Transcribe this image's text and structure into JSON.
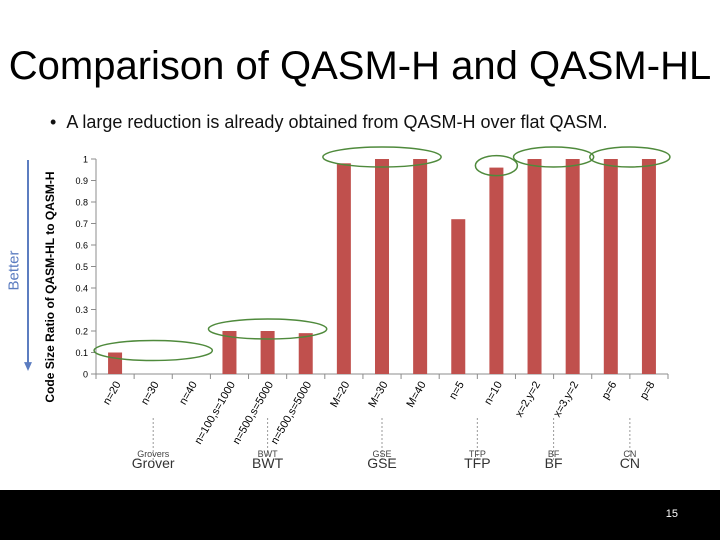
{
  "slide": {
    "title": "Comparison of QASM-H and QASM-HL",
    "bullet": "A large reduction is already obtained from QASM-H over flat QASM.",
    "side_label": "Better",
    "page_number": "15"
  },
  "chart_data": {
    "type": "bar",
    "ylabel": "Code Size Ratio of QASM-HL to QASM-H",
    "ylim": [
      0,
      1
    ],
    "yticks": [
      "0",
      "0.1",
      "0.2",
      "0.3",
      "0.4",
      "0.5",
      "0.6",
      "0.7",
      "0.8",
      "0.9",
      "1"
    ],
    "grid": false,
    "bar_color": "#c0504d",
    "highlight_color": "#4f8a3c",
    "categories": [
      "n=20",
      "n=30",
      "n=40",
      "n=100,s=1000",
      "n=500,s=5000",
      "n=500,s=5000",
      "M=20",
      "M=30",
      "M=40",
      "n=5",
      "n=10",
      "x=2,y=2",
      "x=3,y=2",
      "p=6",
      "p=8"
    ],
    "values": [
      0.1,
      0,
      0,
      0.2,
      0.2,
      0.19,
      0.98,
      1.0,
      1.0,
      0.72,
      0.96,
      1.0,
      1.0,
      1.0,
      1.0
    ],
    "groups": [
      {
        "label": "Grover",
        "small_label": "Grovers",
        "span": [
          0,
          2
        ]
      },
      {
        "label": "BWT",
        "small_label": "BWT",
        "span": [
          3,
          5
        ]
      },
      {
        "label": "GSE",
        "small_label": "GSE",
        "span": [
          6,
          8
        ]
      },
      {
        "label": "TFP",
        "small_label": "TFP",
        "span": [
          9,
          10
        ]
      },
      {
        "label": "BF",
        "small_label": "BF",
        "span": [
          11,
          12
        ]
      },
      {
        "label": "CN",
        "small_label": "CN",
        "span": [
          13,
          14
        ]
      }
    ],
    "highlights": [
      [
        0,
        2
      ],
      [
        3,
        5
      ],
      [
        6,
        8
      ],
      [
        10,
        10
      ],
      [
        11,
        12
      ],
      [
        13,
        14
      ]
    ]
  }
}
